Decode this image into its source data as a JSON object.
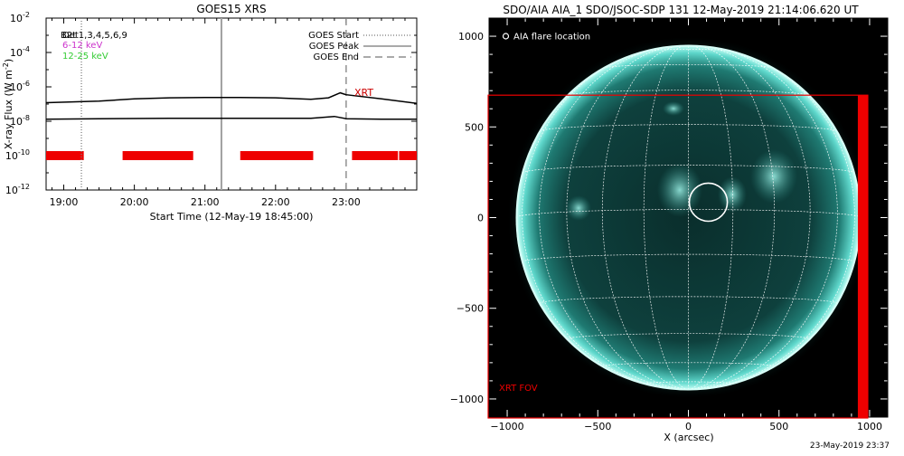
{
  "chart_data": [
    {
      "type": "line",
      "title": "GOES15 XRS",
      "xlabel": "Start Time (12-May-19 18:45:00)",
      "ylabel": "X-ray Flux (W m",
      "ylabel_sup": "-2",
      "ylabel_close": ")",
      "ylog": true,
      "ylim": [
        1e-12,
        0.01
      ],
      "xlim": [
        "18:45",
        "24:00"
      ],
      "x_ticks": [
        "19:00",
        "20:00",
        "21:00",
        "22:00",
        "23:00"
      ],
      "y_ticks": [
        {
          "base": "10",
          "exp": "-2",
          "v": 0.01
        },
        {
          "base": "10",
          "exp": "-4",
          "v": 0.0001
        },
        {
          "base": "10",
          "exp": "-6",
          "v": 1e-06
        },
        {
          "base": "10",
          "exp": "-8",
          "v": 1e-08
        },
        {
          "base": "10",
          "exp": "-10",
          "v": 1e-10
        },
        {
          "base": "10",
          "exp": "-12",
          "v": 1e-12
        }
      ],
      "series": [
        {
          "name": "",
          "color": "#000000",
          "x": [
            "18:45",
            "19:30",
            "20:00",
            "20:30",
            "21:00",
            "21:30",
            "22:00",
            "22:30",
            "22:45",
            "22:55",
            "23:00",
            "23:30",
            "24:00"
          ],
          "values": [
            1.2e-07,
            1.5e-07,
            2e-07,
            2.3e-07,
            2.4e-07,
            2.4e-07,
            2.3e-07,
            1.9e-07,
            2.3e-07,
            4.5e-07,
            3.5e-07,
            2e-07,
            1.1e-07
          ]
        },
        {
          "name": "",
          "color": "#000000",
          "x": [
            "18:45",
            "19:30",
            "20:30",
            "21:30",
            "22:30",
            "22:50",
            "23:00",
            "23:30",
            "24:00"
          ],
          "values": [
            1.3e-08,
            1.4e-08,
            1.5e-08,
            1.5e-08,
            1.5e-08,
            1.9e-08,
            1.4e-08,
            1.3e-08,
            1.3e-08
          ]
        }
      ],
      "legend": {
        "placement": "top-right",
        "entries": [
          {
            "label": "GOES Start",
            "style": "dotted"
          },
          {
            "label": "GOES Peak",
            "style": "solid"
          },
          {
            "label": "GOES End",
            "style": "dashed"
          }
        ]
      },
      "vlines": [
        {
          "x": "19:15",
          "style": "dotted",
          "color": "#808080"
        },
        {
          "x": "21:14",
          "style": "solid",
          "color": "#a0a0a0"
        },
        {
          "x": "23:00",
          "style": "dashed",
          "color": "#808080"
        }
      ],
      "energy_labels": [
        {
          "text": "Det1,3,4,5,6,9",
          "color": "#000000"
        },
        {
          "text": "6-12 keV",
          "color": "#cc33cc"
        },
        {
          "text": "12-25 keV",
          "color": "#33cc33"
        }
      ],
      "overlap_text": "B2t",
      "annotation": {
        "text": "XRT",
        "color": "#cc0000"
      },
      "red_bars": [
        {
          "start": "18:45",
          "end": "19:17"
        },
        {
          "start": "19:50",
          "end": "20:50"
        },
        {
          "start": "21:30",
          "end": "22:32"
        },
        {
          "start": "23:05",
          "end": "23:44"
        },
        {
          "start": "23:45",
          "end": "24:00"
        }
      ],
      "red_bar_level": 1e-10
    },
    {
      "type": "heatmap",
      "title": "SDO/AIA AIA_1 SDO/JSOC-SDP 131 12-May-2019 21:14:06.620 UT",
      "xlabel": "X (arcsec)",
      "ylabel": "",
      "xlim": [
        -1100,
        1100
      ],
      "ylim": [
        -1100,
        1100
      ],
      "x_ticks": [
        -1000,
        -500,
        0,
        500,
        1000
      ],
      "y_ticks": [
        1000,
        500,
        0,
        -500,
        -1000
      ],
      "x_tick_labels": [
        "−1000",
        "−500",
        "0",
        "500",
        "1000"
      ],
      "y_tick_labels": [
        "1000",
        "500",
        "0",
        "−500",
        "−1000"
      ],
      "solar_radius": 950,
      "grid": true,
      "legend_text": "AIA flare location",
      "flare_location": {
        "x": 110,
        "y": 85,
        "r": 105
      },
      "fov_label": "XRT FOV",
      "fov_rect": {
        "x1": -1105,
        "x2": 990,
        "y1": -1105,
        "y2": 675
      },
      "fov_band": {
        "x1": 935,
        "x2": 990
      },
      "colors": {
        "fov": "#ee0000",
        "limb": "#bff7ee",
        "disk": "#0c3c3a"
      }
    }
  ],
  "footer": {
    "timestamp": "23-May-2019 23:37"
  }
}
